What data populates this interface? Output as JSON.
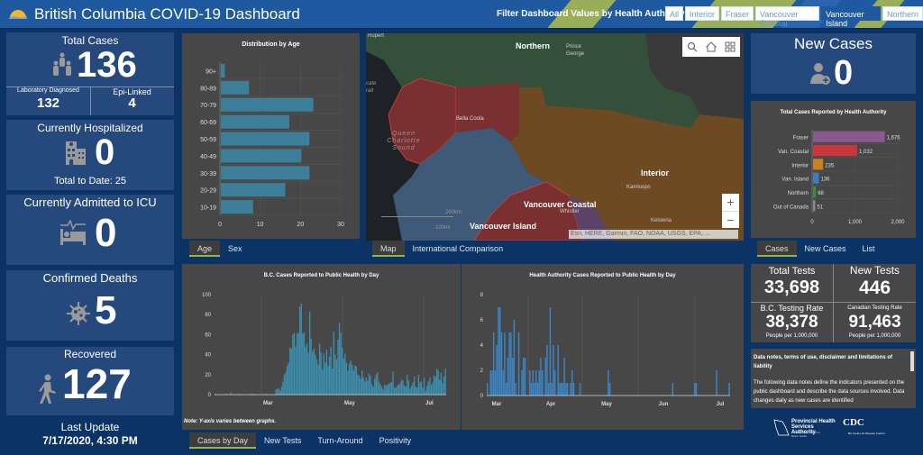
{
  "header": {
    "title": "British Columbia COVID-19 Dashboard",
    "filter_label": "Filter Dashboard Values by Health Authority:",
    "filters": [
      {
        "label": "All",
        "selected": false
      },
      {
        "label": "Interior",
        "selected": false
      },
      {
        "label": "Fraser",
        "selected": false
      },
      {
        "label": "Vancouver Coastal",
        "selected": false
      },
      {
        "label": "Vancouver Island",
        "selected": true
      },
      {
        "label": "Northern",
        "selected": false
      }
    ]
  },
  "left": {
    "total_cases": {
      "label": "Total Cases",
      "value": "136",
      "icon": "people-icon"
    },
    "lab_diagnosed": {
      "label": "Laboratory Diagnosed",
      "value": "132"
    },
    "epi_linked": {
      "label": "Epi-Linked",
      "value": "4"
    },
    "hospitalized": {
      "label": "Currently Hospitalized",
      "value": "0",
      "total_to_date": "Total to Date: 25",
      "icon": "hospital-icon"
    },
    "icu": {
      "label": "Currently Admitted to ICU",
      "value": "0",
      "icon": "icu-bed-icon"
    },
    "deaths": {
      "label": "Confirmed Deaths",
      "value": "5",
      "icon": "virus-icon"
    },
    "recovered": {
      "label": "Recovered",
      "value": "127",
      "icon": "walking-person-icon"
    },
    "last_update_label": "Last Update",
    "last_update_value": "7/17/2020, 4:30 PM"
  },
  "age_panel": {
    "tabs": [
      {
        "label": "Age",
        "selected": true
      },
      {
        "label": "Sex",
        "selected": false
      }
    ]
  },
  "map_panel": {
    "labels": {
      "rupert": "Rupert",
      "northern": "Northern",
      "prince_george": "Prince George",
      "hecate": "cate rait",
      "bella_coola": "Bella Coola",
      "queen_charlotte": "Queen Charlotte Sound",
      "interior": "Interior",
      "kamloops": "Kamloops",
      "van_coastal": "Vancouver Coastal",
      "whistler": "Whistler",
      "van_island": "Vancouver Island",
      "kelowna": "Kelowna",
      "scale_km": "200km",
      "scale_mi": "100mi"
    },
    "attribution": "Esri, HERE, Garmin, FAO, NOAA, USGS, EPA, ...",
    "zoom_in": "+",
    "zoom_out": "−",
    "tabs": [
      {
        "label": "Map",
        "selected": true
      },
      {
        "label": "International Comparison",
        "selected": false
      }
    ],
    "region_colors": {
      "northern": "#34503a",
      "interior": "#6e4a22",
      "van_coastal": "#7a2f30",
      "van_island": "#3e5a78",
      "fraser": "#5a4366",
      "water": "#1e2226",
      "outside": "#3a3a3a"
    }
  },
  "right": {
    "new_cases": {
      "label": "New Cases",
      "value": "0",
      "icon": "add-person-icon"
    },
    "ha_tabs": [
      {
        "label": "Cases",
        "selected": true
      },
      {
        "label": "New Cases",
        "selected": false
      },
      {
        "label": "List",
        "selected": false
      }
    ],
    "tests": {
      "total_tests_label": "Total Tests",
      "total_tests_value": "33,698",
      "new_tests_label": "New Tests",
      "new_tests_value": "446",
      "bc_rate_label": "B.C. Testing Rate",
      "bc_rate_value": "38,378",
      "bc_rate_sub": "People per 1,000,000",
      "can_rate_label": "Canadian Testing Rate",
      "can_rate_value": "91,463",
      "can_rate_sub": "People per 1,000,000"
    },
    "notes": {
      "heading": "Data notes, terms of use, disclaimer and limitations of liability",
      "body": "The following data notes define the indicators presented on the public dashboard and describe the data sources involved. Data changes daily as new cases are identified"
    },
    "logos": {
      "phsa_line1": "Provincial Health",
      "phsa_line2": "Services Authority",
      "phsa_tag": "Province-wide solutions. Better health.",
      "bccdc_name": "BC Centre for Disease Control"
    }
  },
  "bottom": {
    "note": "Note: Y-axis varies between graphs.",
    "tabs": [
      {
        "label": "Cases by Day",
        "selected": true
      },
      {
        "label": "New Tests",
        "selected": false
      },
      {
        "label": "Turn-Around",
        "selected": false
      },
      {
        "label": "Positivity",
        "selected": false
      }
    ]
  },
  "chart_data": [
    {
      "type": "bar",
      "orientation": "horizontal",
      "title": "Distribution by Age",
      "categories": [
        "90+",
        "80-89",
        "70-79",
        "60-69",
        "50-59",
        "40-49",
        "30-39",
        "20-29",
        "10-19"
      ],
      "values": [
        1,
        7,
        23,
        17,
        22,
        20,
        22,
        16,
        8
      ],
      "xlim": [
        0,
        30
      ],
      "xticks": [
        "0",
        "10",
        "20",
        "30"
      ],
      "color": "#3d7f99",
      "grid": true
    },
    {
      "type": "bar",
      "orientation": "horizontal",
      "title": "Total Cases Reported by Health Authority",
      "categories": [
        "Fraser",
        "Van. Coastal",
        "Interior",
        "Van. Island",
        "Northern",
        "Out of Canada"
      ],
      "values": [
        1676,
        1032,
        235,
        136,
        68,
        51
      ],
      "labels": [
        "1,676",
        "1,032",
        "235",
        "136",
        "68",
        "51"
      ],
      "colors": [
        "#8a5a8e",
        "#c8373a",
        "#c9821f",
        "#3d7fb8",
        "#3f8a47",
        "#8a8a8a"
      ],
      "xlim": [
        0,
        2000
      ],
      "xticks": [
        "0",
        "1,000",
        "2,000"
      ],
      "grid": true
    },
    {
      "type": "bar",
      "title": "B.C. Cases Reported to Public Health by Day",
      "ylim": [
        0,
        100
      ],
      "yticks": [
        "0",
        "20",
        "40",
        "60",
        "80",
        "100"
      ],
      "xtick_labels": [
        "Mar",
        "May",
        "Jul"
      ],
      "color": "#3d8fae",
      "values": [
        1,
        0,
        0,
        0,
        0,
        0,
        0,
        0,
        1,
        0,
        0,
        2,
        0,
        0,
        0,
        0,
        0,
        1,
        0,
        0,
        0,
        0,
        0,
        0,
        0,
        0,
        1,
        1,
        0,
        0,
        0,
        0,
        0,
        0,
        0,
        0,
        1,
        0,
        0,
        0,
        0,
        0,
        0,
        5,
        6,
        6,
        4,
        8,
        13,
        20,
        23,
        29,
        32,
        47,
        46,
        60,
        62,
        48,
        61,
        62,
        88,
        91,
        61,
        62,
        48,
        51,
        42,
        83,
        56,
        43,
        46,
        40,
        35,
        30,
        51,
        42,
        25,
        41,
        32,
        45,
        29,
        38,
        48,
        26,
        63,
        40,
        35,
        55,
        72,
        62,
        47,
        36,
        41,
        32,
        24,
        31,
        34,
        30,
        24,
        29,
        28,
        20,
        19,
        16,
        24,
        17,
        13,
        17,
        14,
        21,
        19,
        10,
        8,
        16,
        20,
        22,
        13,
        10,
        8,
        5,
        10,
        9,
        10,
        11,
        12,
        13,
        23,
        7,
        7,
        9,
        10,
        12,
        15,
        14,
        9,
        8,
        20,
        14,
        6,
        9,
        12,
        18,
        8,
        7,
        20,
        12,
        13,
        7,
        17,
        4,
        9,
        13,
        17,
        10,
        12,
        19,
        18,
        26,
        24,
        15,
        22,
        12,
        18,
        26
      ]
    },
    {
      "type": "bar",
      "title": "Health Authority Cases Reported to Public Health by Day",
      "ylim": [
        0,
        8
      ],
      "yticks": [
        "0",
        "2",
        "4",
        "6",
        "8"
      ],
      "xtick_labels": [
        "Mar",
        "Apr",
        "May",
        "Jun",
        "Jul"
      ],
      "color": "#3d84c2",
      "values": [
        1,
        0,
        2,
        2,
        5,
        2,
        4,
        7,
        7,
        5,
        2,
        5,
        1,
        3,
        5,
        5,
        3,
        6,
        1,
        0,
        5,
        0,
        2,
        3,
        3,
        0,
        0,
        2,
        1,
        2,
        1,
        2,
        1,
        2,
        3,
        2,
        0,
        3,
        4,
        1,
        7,
        1,
        4,
        2,
        0,
        4,
        1,
        1,
        1,
        3,
        1,
        1,
        0,
        1,
        2,
        1,
        0,
        0,
        0,
        1,
        0,
        0,
        0,
        0,
        0,
        0,
        0,
        0,
        0,
        0,
        0,
        0,
        0,
        0,
        0,
        0,
        0,
        2,
        1,
        0,
        0,
        0,
        0,
        0,
        0,
        0,
        0,
        0,
        0,
        0,
        0,
        0,
        0,
        0,
        0,
        0,
        0,
        0,
        0,
        0,
        0,
        0,
        0,
        0,
        0,
        0,
        0,
        0,
        0,
        0,
        0,
        0,
        0,
        0,
        0,
        0,
        0,
        0,
        1,
        0,
        0,
        0,
        0,
        0,
        0,
        0,
        0,
        0,
        0,
        0,
        0,
        0,
        1,
        1,
        0,
        0,
        0,
        0,
        0,
        0,
        0,
        0,
        0,
        0,
        0,
        0,
        2,
        0,
        0,
        0,
        0,
        0,
        0,
        0,
        1
      ]
    }
  ]
}
